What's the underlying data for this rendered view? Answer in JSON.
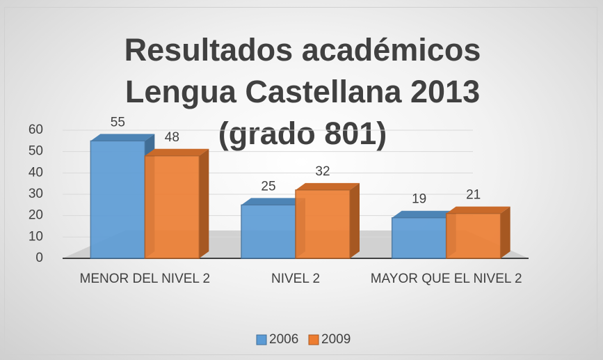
{
  "chart_data": {
    "type": "bar3d",
    "title": "Resultados académicos Lengua Castellana 2013 (grado 801)",
    "categories": [
      "MENOR DEL NIVEL 2",
      "NIVEL 2",
      "MAYOR QUE EL NIVEL 2"
    ],
    "series": [
      {
        "name": "2006",
        "color": "#5b9bd5",
        "values": [
          55,
          25,
          19
        ]
      },
      {
        "name": "2009",
        "color": "#ed7d31",
        "values": [
          48,
          32,
          21
        ]
      }
    ],
    "ylim": [
      0,
      60
    ],
    "yticks": [
      0,
      10,
      20,
      30,
      40,
      50,
      60
    ],
    "grid": true,
    "legend": "bottom"
  }
}
